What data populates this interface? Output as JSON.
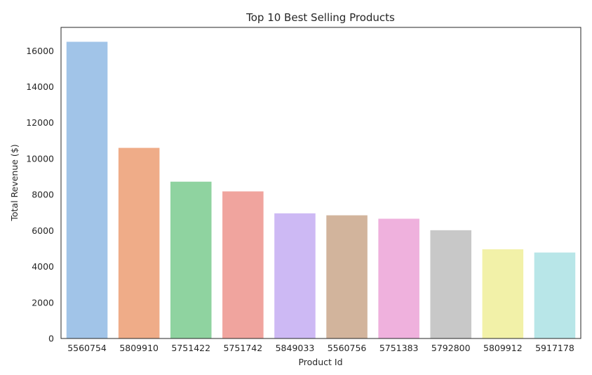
{
  "chart_data": {
    "type": "bar",
    "title": "Top 10 Best Selling Products",
    "xlabel": "Product Id",
    "ylabel": "Total Revenue ($)",
    "categories": [
      "5560754",
      "5809910",
      "5751422",
      "5751742",
      "5849033",
      "5560756",
      "5751383",
      "5792800",
      "5809912",
      "5917178"
    ],
    "values": [
      16500,
      10600,
      8720,
      8180,
      6960,
      6850,
      6660,
      6020,
      4960,
      4780
    ],
    "colors": [
      "#a1c4e8",
      "#efac88",
      "#8fd3a0",
      "#f0a49e",
      "#cdb9f4",
      "#d2b49c",
      "#efb1dd",
      "#c8c8c8",
      "#f2f1a8",
      "#b8e6e8"
    ],
    "ylim": [
      0,
      17300
    ],
    "yticks": [
      0,
      2000,
      4000,
      6000,
      8000,
      10000,
      12000,
      14000,
      16000
    ],
    "grid": false,
    "legend": "none"
  }
}
